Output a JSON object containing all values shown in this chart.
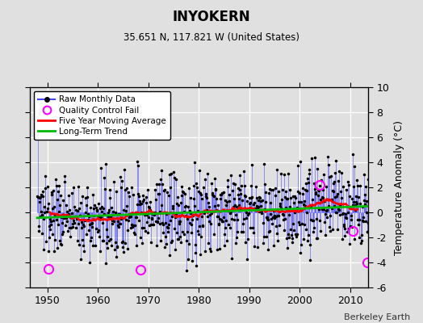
{
  "title": "INYOKERN",
  "subtitle": "35.651 N, 117.821 W (United States)",
  "ylabel": "Temperature Anomaly (°C)",
  "credit": "Berkeley Earth",
  "xlim": [
    1946.5,
    2013.5
  ],
  "ylim": [
    -6,
    10
  ],
  "yticks": [
    -6,
    -4,
    -2,
    0,
    2,
    4,
    6,
    8,
    10
  ],
  "xticks": [
    1950,
    1960,
    1970,
    1980,
    1990,
    2000,
    2010
  ],
  "bg_color": "#e0e0e0",
  "plot_bg_color": "#e0e0e0",
  "line_color": "#4444ff",
  "dot_color": "#000000",
  "moving_avg_color": "#ff0000",
  "trend_color": "#00bb00",
  "qc_fail_color": "#ff00ff",
  "seed": 137
}
